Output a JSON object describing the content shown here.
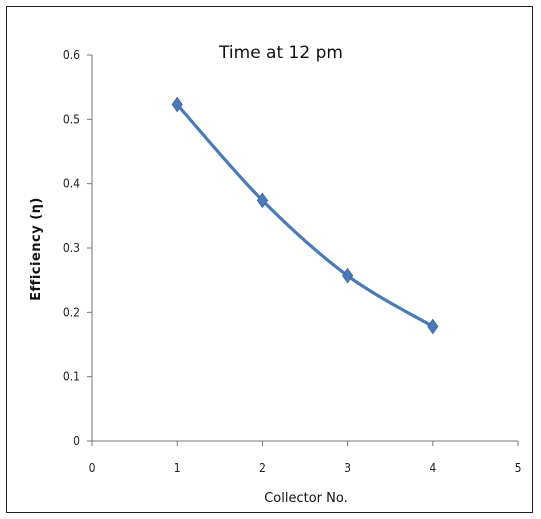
{
  "chart_data": {
    "type": "line",
    "title": "Time at 12 pm",
    "xlabel": "Collector No.",
    "ylabel": "Efficiency (η)",
    "x": [
      1,
      2,
      3,
      4
    ],
    "series": [
      {
        "values": [
          0.523,
          0.374,
          0.257,
          0.178
        ]
      }
    ],
    "xlim": [
      0,
      5
    ],
    "ylim": [
      0,
      0.6
    ],
    "xticks": [
      "0",
      "1",
      "2",
      "3",
      "4",
      "5"
    ],
    "yticks": [
      "0",
      "0.1",
      "0.2",
      "0.3",
      "0.4",
      "0.5",
      "0.6"
    ],
    "grid": false,
    "legend": "none",
    "line_color": "#4a7ab8",
    "marker": "diamond",
    "smooth": true
  }
}
